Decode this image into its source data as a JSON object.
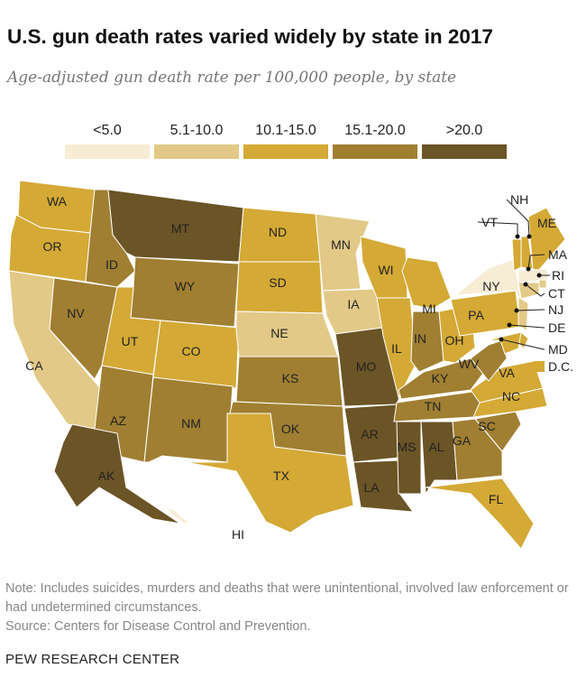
{
  "title": "U.S. gun death rates varied widely by state in 2017",
  "subtitle": "Age-adjusted gun death rate per 100,000 people, by state",
  "chart_data": {
    "type": "choropleth",
    "title": "U.S. gun death rates varied widely by state in 2017",
    "legend": [
      {
        "label": "<5.0",
        "color": "#f7ecd4"
      },
      {
        "label": "5.1-10.0",
        "color": "#e2c987"
      },
      {
        "label": "10.1-15.0",
        "color": "#d4a935"
      },
      {
        "label": "15.1-20.0",
        "color": "#a07f32"
      },
      {
        "label": ">20.0",
        "color": "#6b5426"
      }
    ],
    "states": {
      "WA": 2,
      "OR": 2,
      "CA": 1,
      "NV": 3,
      "ID": 3,
      "MT": 4,
      "WY": 3,
      "UT": 2,
      "CO": 2,
      "AZ": 3,
      "NM": 3,
      "ND": 2,
      "SD": 2,
      "NE": 1,
      "KS": 3,
      "OK": 3,
      "TX": 2,
      "MN": 1,
      "IA": 1,
      "MO": 4,
      "AR": 4,
      "LA": 4,
      "WI": 2,
      "IL": 2,
      "MI": 2,
      "IN": 3,
      "OH": 2,
      "KY": 3,
      "TN": 3,
      "MS": 4,
      "AL": 4,
      "GA": 3,
      "FL": 2,
      "SC": 3,
      "NC": 2,
      "VA": 2,
      "WV": 3,
      "PA": 2,
      "NY": 0,
      "VT": 2,
      "NH": 2,
      "ME": 2,
      "MA": 0,
      "RI": 1,
      "CT": 1,
      "NJ": 1,
      "DE": 2,
      "MD": 2,
      "AK": 4,
      "HI": 0,
      "D.C.": 2
    }
  },
  "note": "Note: Includes suicides, murders and deaths that were unintentional, involved law enforcement or had undetermined circumstances.",
  "source": "Source: Centers for Disease Control and Prevention.",
  "footer": "PEW RESEARCH CENTER"
}
